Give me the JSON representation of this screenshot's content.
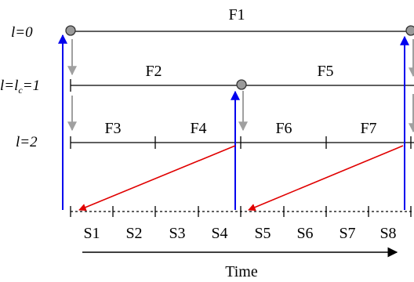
{
  "levels": {
    "l0": "l=0",
    "l1_prefix": "l=l",
    "l1_sub": "c",
    "l1_suffix": "=1",
    "l2": "l=2"
  },
  "frames": [
    "F1",
    "F2",
    "F5",
    "F3",
    "F4",
    "F6",
    "F7"
  ],
  "slots": [
    "S1",
    "S2",
    "S3",
    "S4",
    "S5",
    "S6",
    "S7",
    "S8"
  ],
  "time_label": "Time",
  "colors": {
    "line": "#000000",
    "node_fill": "#9a9a9a",
    "gray_arrow": "#a0a0a0",
    "blue_arrow": "#0000ee",
    "red_arrow": "#e00000"
  }
}
